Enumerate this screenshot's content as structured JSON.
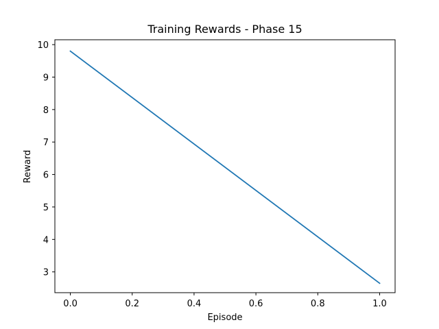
{
  "chart_data": {
    "type": "line",
    "title": "Training Rewards - Phase 15",
    "xlabel": "Episode",
    "ylabel": "Reward",
    "xlim": [
      -0.05,
      1.05
    ],
    "ylim": [
      2.36,
      10.15
    ],
    "x_ticks": [
      0.0,
      0.2,
      0.4,
      0.6,
      0.8,
      1.0
    ],
    "x_tick_labels": [
      "0.0",
      "0.2",
      "0.4",
      "0.6",
      "0.8",
      "1.0"
    ],
    "y_ticks": [
      3,
      4,
      5,
      6,
      7,
      8,
      9,
      10
    ],
    "y_tick_labels": [
      "3",
      "4",
      "5",
      "6",
      "7",
      "8",
      "9",
      "10"
    ],
    "grid": false,
    "series": [
      {
        "color": "#1f77b4",
        "x": [
          0.0,
          1.0
        ],
        "y": [
          9.8,
          2.65
        ]
      }
    ]
  }
}
